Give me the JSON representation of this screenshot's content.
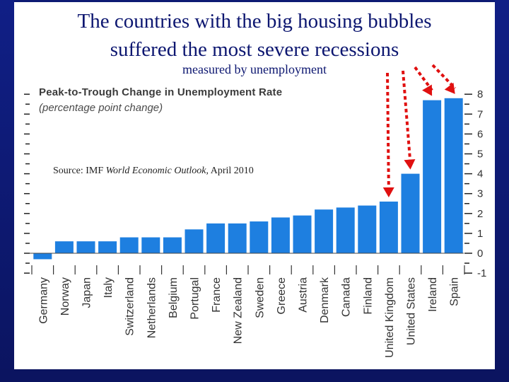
{
  "slide": {
    "title_line1": "The countries with the big housing bubbles",
    "title_line2": "suffered the most severe recessions",
    "subtitle": "measured by unemployment",
    "source_prefix": "Source:  IMF ",
    "source_publication": "World Economic Outlook",
    "source_suffix": ", April 2010"
  },
  "chart_data": {
    "type": "bar",
    "title": "Peak-to-Trough Change in Unemployment Rate",
    "subtitle": "(percentage point change)",
    "categories": [
      "Germany",
      "Norway",
      "Japan",
      "Italy",
      "Switzerland",
      "Netherlands",
      "Belgium",
      "Portugal",
      "France",
      "New Zealand",
      "Sweden",
      "Greece",
      "Austria",
      "Denmark",
      "Canada",
      "Finland",
      "United Kingdom",
      "United States",
      "Ireland",
      "Spain"
    ],
    "values": [
      -0.3,
      0.6,
      0.6,
      0.6,
      0.8,
      0.8,
      0.8,
      1.2,
      1.5,
      1.5,
      1.6,
      1.8,
      1.9,
      2.2,
      2.3,
      2.4,
      2.6,
      4.0,
      7.7,
      7.8
    ],
    "ylim": [
      -1,
      8
    ],
    "yticks": [
      "-1",
      "0",
      "1",
      "2",
      "3",
      "4",
      "5",
      "6",
      "7",
      "8"
    ],
    "bar_color": "#1e7fe0",
    "highlighted": [
      "United Kingdom",
      "United States",
      "Ireland",
      "Spain"
    ],
    "arrow_color": "#e01010"
  }
}
